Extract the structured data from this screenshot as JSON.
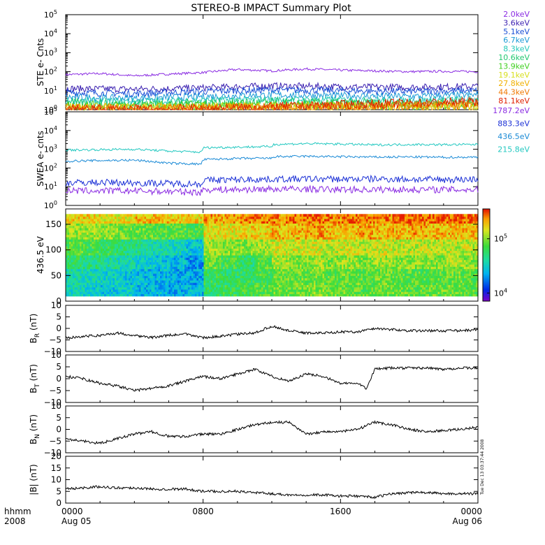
{
  "title": "STEREO-B IMPACT Summary Plot",
  "timestamp": "Tue Dec 13 03:37:44 2008",
  "x_axis": {
    "corner_label_1": "hhmm",
    "corner_label_2": "2008",
    "ticks": [
      {
        "hour": 0,
        "label": "0000",
        "sublabel": "Aug 05"
      },
      {
        "hour": 8,
        "label": "0800",
        "sublabel": ""
      },
      {
        "hour": 16,
        "label": "1600",
        "sublabel": ""
      },
      {
        "hour": 24,
        "label": "0000",
        "sublabel": "Aug 06"
      }
    ],
    "range": [
      0,
      24
    ]
  },
  "colors": {
    "2.0keV": "#8a2be2",
    "3.6keV": "#3a1fb0",
    "5.1keV": "#1a4fd6",
    "6.7keV": "#1a9ad6",
    "8.3keV": "#22c8b8",
    "10.6keV": "#22c870",
    "13.9keV": "#40d020",
    "19.1keV": "#d8e020",
    "27.8keV": "#f0b000",
    "44.3keV": "#f07800",
    "81.1keV": "#e02000",
    "1787.2eV": "#8a2be2",
    "883.3eV": "#1a2fd6",
    "436.5eV": "#1a8ad6",
    "215.8eV": "#22c8c0"
  },
  "chart_data": [
    {
      "type": "line",
      "panel": "ste",
      "ylabel": "STE e- Cnts",
      "yscale": "log",
      "ylim_exp": [
        0,
        5
      ],
      "tick_exponents": [
        0,
        1,
        2,
        3,
        4,
        5
      ],
      "legend_placement": "right",
      "series": [
        {
          "name": "2.0keV",
          "x": [
            0,
            2,
            4,
            6,
            8,
            10,
            12,
            14,
            16,
            18,
            20,
            22,
            24
          ],
          "values": [
            70,
            80,
            60,
            75,
            90,
            130,
            110,
            140,
            120,
            110,
            100,
            105,
            100
          ]
        },
        {
          "name": "3.6keV",
          "x": [
            0,
            4,
            8,
            12,
            16,
            20,
            24
          ],
          "values": [
            13,
            12,
            14,
            18,
            16,
            15,
            17
          ]
        },
        {
          "name": "5.1keV",
          "x": [
            0,
            4,
            8,
            12,
            16,
            20,
            24
          ],
          "values": [
            8,
            7,
            9,
            11,
            10,
            9,
            10
          ]
        },
        {
          "name": "6.7keV",
          "x": [
            0,
            4,
            8,
            12,
            16,
            20,
            24
          ],
          "values": [
            4.5,
            4,
            5,
            6,
            5.5,
            5,
            6
          ]
        },
        {
          "name": "8.3keV",
          "x": [
            0,
            4,
            8,
            12,
            16,
            20,
            24
          ],
          "values": [
            3,
            2.8,
            3.2,
            3.5,
            3.3,
            3.1,
            3.6
          ]
        },
        {
          "name": "10.6keV",
          "x": [
            0,
            4,
            8,
            12,
            16,
            20,
            24
          ],
          "values": [
            2.2,
            2,
            2.2,
            2.4,
            2.3,
            2.2,
            2.5
          ]
        },
        {
          "name": "13.9keV",
          "x": [
            0,
            4,
            8,
            12,
            16,
            20,
            24
          ],
          "values": [
            1.7,
            1.6,
            1.7,
            1.8,
            1.8,
            1.7,
            1.9
          ]
        },
        {
          "name": "19.1keV",
          "x": [
            0,
            4,
            8,
            12,
            16,
            20,
            24
          ],
          "values": [
            1.4,
            1.3,
            1.4,
            1.5,
            1.5,
            1.5,
            1.6
          ]
        },
        {
          "name": "27.8keV",
          "x": [
            0,
            4,
            8,
            12,
            16,
            20,
            24
          ],
          "values": [
            1.25,
            1.2,
            1.25,
            1.35,
            1.4,
            1.5,
            1.6
          ]
        },
        {
          "name": "44.3keV",
          "x": [
            0,
            4,
            8,
            12,
            16,
            20,
            24
          ],
          "values": [
            1.15,
            1.1,
            1.15,
            1.3,
            1.5,
            1.7,
            1.9
          ]
        },
        {
          "name": "81.1keV",
          "x": [
            0,
            4,
            8,
            12,
            16,
            20,
            24
          ],
          "values": [
            1.05,
            1.05,
            1.1,
            1.4,
            1.8,
            2.2,
            2.6
          ]
        }
      ]
    },
    {
      "type": "line",
      "panel": "swea",
      "ylabel": "SWEA e- cnts",
      "yscale": "log",
      "ylim_exp": [
        0,
        5
      ],
      "tick_exponents": [
        0,
        1,
        2,
        3,
        4,
        5
      ],
      "legend_placement": "right",
      "series": [
        {
          "name": "215.8eV",
          "x": [
            0,
            2,
            4,
            6,
            7.9,
            8,
            10,
            12,
            12.1,
            14,
            16,
            18,
            20,
            22,
            24
          ],
          "values": [
            900,
            950,
            1000,
            800,
            700,
            1200,
            1300,
            1400,
            1800,
            2000,
            1900,
            1700,
            1800,
            1750,
            1800
          ]
        },
        {
          "name": "436.5eV",
          "x": [
            0,
            2,
            4,
            6,
            7.9,
            8,
            10,
            12,
            12.1,
            14,
            16,
            18,
            20,
            22,
            24
          ],
          "values": [
            230,
            250,
            260,
            180,
            160,
            280,
            320,
            330,
            400,
            420,
            400,
            380,
            390,
            370,
            380
          ]
        },
        {
          "name": "883.3eV",
          "x": [
            0,
            2,
            4,
            6,
            7.9,
            8,
            10,
            12,
            14,
            16,
            18,
            20,
            22,
            24
          ],
          "values": [
            16,
            17,
            16,
            15,
            14,
            22,
            24,
            25,
            26,
            25,
            26,
            25,
            24,
            25
          ]
        },
        {
          "name": "1787.2eV",
          "x": [
            0,
            2,
            4,
            6,
            7.9,
            8,
            10,
            12,
            14,
            16,
            18,
            20,
            22,
            24
          ],
          "values": [
            6,
            6,
            6,
            5.5,
            5,
            7,
            7,
            7.5,
            7.5,
            7,
            7,
            7,
            7,
            7
          ]
        }
      ]
    },
    {
      "type": "heatmap",
      "panel": "pad",
      "ylabel": "436.5 eV",
      "ylim": [
        0,
        180
      ],
      "yticks": [
        0,
        50,
        100,
        150
      ],
      "colorbar_ticks": [
        {
          "exp": 4,
          "value": 10000
        },
        {
          "exp": 5,
          "value": 100000
        }
      ],
      "colorbar_exp_range": [
        3.85,
        5.55
      ],
      "x_bins": [
        0,
        1,
        2,
        3,
        4,
        5,
        6,
        7,
        8,
        9,
        10,
        11,
        12,
        13,
        14,
        15,
        16,
        17,
        18,
        19,
        20,
        21,
        22,
        23
      ],
      "y_bins": [
        15,
        45,
        75,
        105,
        135,
        165
      ],
      "log_values": [
        [
          4.55,
          4.5,
          4.45,
          4.5,
          4.4,
          4.4,
          4.35,
          4.4,
          4.75,
          4.8,
          4.85,
          4.9,
          4.95,
          4.95,
          5.0,
          4.95,
          4.95,
          4.9,
          4.95,
          4.95,
          4.9,
          4.95,
          4.95,
          4.9
        ],
        [
          4.6,
          4.55,
          4.5,
          4.45,
          4.4,
          4.4,
          4.35,
          4.35,
          4.8,
          4.75,
          4.8,
          4.85,
          4.95,
          4.95,
          4.95,
          4.9,
          4.95,
          4.9,
          4.95,
          4.9,
          4.9,
          4.9,
          4.95,
          4.9
        ],
        [
          4.75,
          4.7,
          4.65,
          4.55,
          4.5,
          4.45,
          4.4,
          4.3,
          4.95,
          4.85,
          4.75,
          4.9,
          5.05,
          5.0,
          5.05,
          5.0,
          5.05,
          5.0,
          5.05,
          5.0,
          5.0,
          5.0,
          5.05,
          5.0
        ],
        [
          4.9,
          4.85,
          4.8,
          4.7,
          4.65,
          4.6,
          4.55,
          4.45,
          5.05,
          5.0,
          5.0,
          5.05,
          5.15,
          5.15,
          5.15,
          5.1,
          5.15,
          5.1,
          5.15,
          5.1,
          5.1,
          5.1,
          5.1,
          5.1
        ],
        [
          5.05,
          5.05,
          5.0,
          4.95,
          4.95,
          4.9,
          4.9,
          4.85,
          5.2,
          5.2,
          5.25,
          5.25,
          5.3,
          5.3,
          5.35,
          5.3,
          5.3,
          5.35,
          5.3,
          5.3,
          5.35,
          5.3,
          5.3,
          5.3
        ],
        [
          5.25,
          5.25,
          5.2,
          5.2,
          5.3,
          5.3,
          5.25,
          5.25,
          5.35,
          5.35,
          5.4,
          5.4,
          5.4,
          5.45,
          5.45,
          5.4,
          5.45,
          5.45,
          5.4,
          5.5,
          5.45,
          5.45,
          5.45,
          5.45
        ]
      ]
    },
    {
      "type": "line",
      "panel": "br",
      "ylabel": "B",
      "ylabel_sub": "R",
      "ylabel_unit": "(nT)",
      "ylim": [
        -10,
        10
      ],
      "yticks": [
        -10,
        -5,
        0,
        5,
        10
      ],
      "series": [
        {
          "name": "",
          "x": [
            0,
            1,
            2,
            3,
            4,
            5,
            6,
            7,
            8,
            9,
            10,
            11,
            12,
            13,
            14,
            15,
            16,
            17,
            18,
            19,
            20,
            21,
            22,
            23,
            24
          ],
          "values": [
            -4,
            -3.5,
            -3,
            -2,
            -3,
            -4,
            -3,
            -2.5,
            -4,
            -3.5,
            -2.5,
            -2,
            1,
            -1,
            -2,
            -2,
            -1.5,
            -1.5,
            0,
            -0.5,
            -1,
            -1,
            -1,
            -1,
            -0.5
          ]
        }
      ]
    },
    {
      "type": "line",
      "panel": "bt",
      "ylabel": "B",
      "ylabel_sub": "T",
      "ylabel_unit": "(nT)",
      "ylim": [
        -10,
        10
      ],
      "yticks": [
        -10,
        -5,
        0,
        5,
        10
      ],
      "series": [
        {
          "name": "",
          "x": [
            0,
            1,
            2,
            3,
            4,
            5,
            6,
            7,
            8,
            9,
            10,
            11,
            12,
            13,
            14,
            15,
            16,
            17,
            17.5,
            18,
            19,
            20,
            21,
            22,
            23,
            24
          ],
          "values": [
            1,
            0,
            -2,
            -3,
            -5,
            -4,
            -3,
            -1,
            1,
            0,
            2,
            4,
            1,
            -1,
            2,
            1,
            -2,
            -2,
            -4,
            4,
            4.5,
            4.5,
            4.5,
            4,
            4.5,
            4.5
          ]
        }
      ]
    },
    {
      "type": "line",
      "panel": "bn",
      "ylabel": "B",
      "ylabel_sub": "N",
      "ylabel_unit": "(nT)",
      "ylim": [
        -10,
        10
      ],
      "yticks": [
        -10,
        -5,
        0,
        5,
        10
      ],
      "series": [
        {
          "name": "",
          "x": [
            0,
            1,
            2,
            3,
            4,
            5,
            6,
            7,
            8,
            9,
            10,
            11,
            12,
            13,
            14,
            15,
            16,
            17,
            18,
            19,
            20,
            21,
            22,
            23,
            24
          ],
          "values": [
            -4,
            -5,
            -6,
            -4,
            -2,
            -1,
            -3,
            -3,
            -2,
            -2,
            0,
            2,
            3,
            3,
            -2,
            -1,
            -1,
            0,
            3,
            2,
            0,
            -1,
            -0.5,
            0,
            1
          ]
        }
      ]
    },
    {
      "type": "line",
      "panel": "bmag",
      "ylabel": "|B| (nT)",
      "ylim": [
        0,
        20
      ],
      "yticks": [
        0,
        5,
        10,
        15,
        20
      ],
      "series": [
        {
          "name": "",
          "x": [
            0,
            1,
            2,
            3,
            4,
            5,
            6,
            7,
            8,
            9,
            10,
            11,
            12,
            13,
            14,
            15,
            16,
            17,
            18,
            19,
            20,
            21,
            22,
            23,
            24
          ],
          "values": [
            6,
            6.5,
            7,
            6.5,
            6.5,
            6,
            6,
            6,
            5,
            5,
            5,
            4.5,
            4,
            3.5,
            3.5,
            3.5,
            3,
            3,
            2.5,
            4,
            4.5,
            4.5,
            4,
            4,
            4
          ]
        }
      ]
    }
  ]
}
